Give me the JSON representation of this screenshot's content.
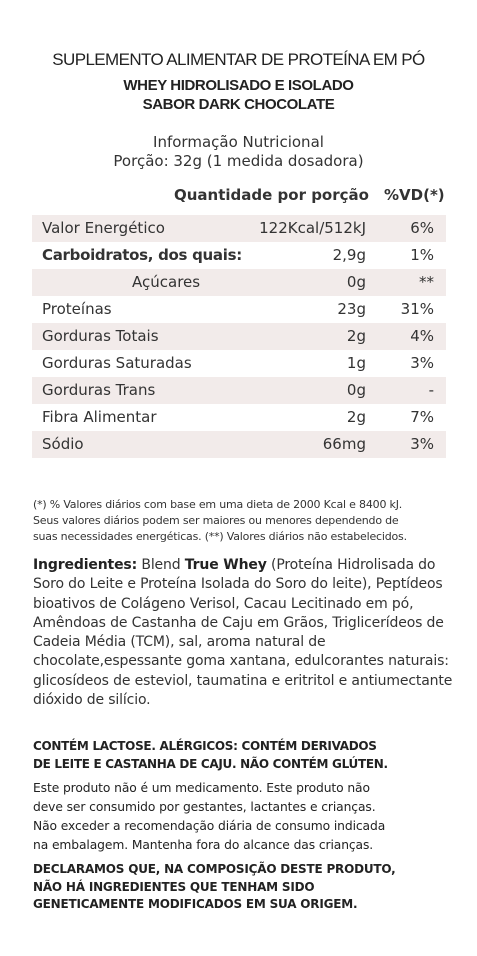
{
  "header": {
    "title": "SUPLEMENTO ALIMENTAR DE PROTEÍNA EM PÓ",
    "subtitle": "WHEY HIDROLISADO E ISOLADO",
    "flavor": "SABOR DARK CHOCOLATE",
    "info_title": "Informação Nutricional",
    "portion": "Porção: 32g (1 medida dosadora)"
  },
  "table": {
    "col_qty": "Quantidade por porção",
    "col_vd": "%VD(*)",
    "rows": [
      {
        "label": "Valor Energético",
        "qty": "122Kcal/512kJ",
        "vd": "6%"
      },
      {
        "label": "Carboidratos, dos quais:",
        "qty": "2,9g",
        "vd": "1%"
      },
      {
        "label": "Açúcares",
        "qty": "0g",
        "vd": "**"
      },
      {
        "label": "Proteínas",
        "qty": "23g",
        "vd": "31%"
      },
      {
        "label": "Gorduras Totais",
        "qty": "2g",
        "vd": "4%"
      },
      {
        "label": "Gorduras Saturadas",
        "qty": "1g",
        "vd": "3%"
      },
      {
        "label": "Gorduras Trans",
        "qty": "0g",
        "vd": "-"
      },
      {
        "label": "Fibra Alimentar",
        "qty": "2g",
        "vd": "7%"
      },
      {
        "label": "Sódio",
        "qty": "66mg",
        "vd": "3%"
      }
    ]
  },
  "footnote": {
    "line1": "(*) % Valores diários com base em uma dieta de 2000 Kcal e 8400 kJ.",
    "line2": "Seus valores diários podem ser maiores ou menores dependendo de",
    "line3": "suas necessidades energéticas. (**) Valores diários não estabelecidos."
  },
  "ingredients": {
    "label": "Ingredientes:",
    "part1": " Blend ",
    "brand": "True Whey",
    "part2": " (Proteína Hidrolisada do Soro do Leite e Proteína Isolada do Soro do leite), Peptídeos bioativos de Colágeno Verisol, Cacau Lecitinado em pó, Amêndoas de Castanha de Caju em Grãos, Triglicerídeos de Cadeia Média (TCM), sal, aroma natural de chocolate,espessante goma xantana, edulcorantes naturais: glicosídeos de esteviol, taumatina e eritritol e antiumectante dióxido de silício."
  },
  "allergens": {
    "line1": "CONTÉM LACTOSE. ALÉRGICOS: CONTÉM DERIVADOS",
    "line2": "DE LEITE E CASTANHA DE CAJU. NÃO CONTÉM GLÚTEN."
  },
  "warning": {
    "line1": "Este produto não é um medicamento. Este produto não",
    "line2": "deve ser consumido por gestantes, lactantes e crianças.",
    "line3": "Não exceder a recomendação diária de consumo indicada",
    "line4": "na embalagem. Mantenha fora do alcance das crianças."
  },
  "declaration": {
    "line1": "DECLARAMOS QUE, NA COMPOSIÇÃO DESTE PRODUTO,",
    "line2": "NÃO HÁ INGREDIENTES QUE TENHAM SIDO",
    "line3": "GENETICAMENTE MODIFICADOS EM SUA ORIGEM."
  }
}
